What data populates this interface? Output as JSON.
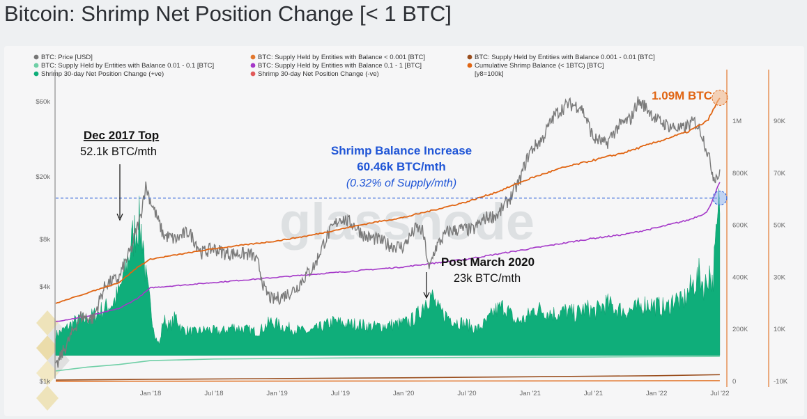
{
  "title": "Bitcoin: Shrimp Net Position Change [< 1 BTC]",
  "watermark": "glassnode",
  "chart_data": {
    "type": "area",
    "title": "Bitcoin: Shrimp Net Position Change [< 1 BTC]",
    "legend": [
      {
        "label": "BTC: Price [USD]",
        "color": "#777777"
      },
      {
        "label": "BTC: Supply Held by Entities with Balance < 0.001 [BTC]",
        "color": "#e2782f"
      },
      {
        "label": "BTC: Supply Held by Entities with Balance 0.001 - 0.01 [BTC]",
        "color": "#9a4e1e"
      },
      {
        "label": "BTC: Supply Held by Entities with Balance 0.01 - 0.1 [BTC]",
        "color": "#6fcfa6"
      },
      {
        "label": "BTC: Supply Held by Entities with Balance 0.1 - 1 [BTC]",
        "color": "#a437c8"
      },
      {
        "label": "Cumulative Shrimp Balance (< 1BTC) [BTC]",
        "color": "#e06513"
      },
      {
        "label": "Shrimp 30-day Net Position Change (+ve)",
        "color": "#0fae7a"
      },
      {
        "label": "Shrimp 30-day Net Position Change (-ve)",
        "color": "#e05a5a"
      },
      {
        "label": "[y8=100k]",
        "color": ""
      }
    ],
    "x_ticks": [
      "Jan '18",
      "Jul '18",
      "Jan '19",
      "Jul '19",
      "Jan '20",
      "Jul '20",
      "Jan '21",
      "Jul '21",
      "Jan '22",
      "Jul '22"
    ],
    "x_range": [
      2017.25,
      2022.55
    ],
    "price_axis": {
      "ticks": [
        "$1k",
        "$4k",
        "$8k",
        "$20k",
        "$60k"
      ],
      "values": [
        1000,
        4000,
        8000,
        20000,
        60000
      ],
      "scale": "log"
    },
    "balance_axis": {
      "ticks": [
        "0",
        "200K",
        "400K",
        "600K",
        "800K",
        "1M"
      ],
      "values": [
        0,
        200000,
        400000,
        600000,
        800000,
        1000000
      ],
      "range": [
        0,
        1150000
      ]
    },
    "change_axis": {
      "ticks": [
        "-10K",
        "10K",
        "30K",
        "50K",
        "70K",
        "90K"
      ],
      "values": [
        -10000,
        10000,
        30000,
        50000,
        70000,
        90000
      ],
      "range": [
        -10000,
        105000
      ]
    },
    "series": [
      {
        "name": "BTC: Price [USD]",
        "axis": "price",
        "x": [
          2017.25,
          2017.35,
          2017.45,
          2017.55,
          2017.65,
          2017.75,
          2017.85,
          2017.92,
          2017.96,
          2018.0,
          2018.05,
          2018.1,
          2018.2,
          2018.3,
          2018.4,
          2018.5,
          2018.6,
          2018.7,
          2018.8,
          2018.85,
          2018.9,
          2018.96,
          2019.05,
          2019.15,
          2019.3,
          2019.4,
          2019.5,
          2019.6,
          2019.7,
          2019.8,
          2019.9,
          2020.0,
          2020.1,
          2020.15,
          2020.2,
          2020.25,
          2020.35,
          2020.45,
          2020.55,
          2020.65,
          2020.75,
          2020.85,
          2020.92,
          2021.0,
          2021.1,
          2021.2,
          2021.3,
          2021.4,
          2021.5,
          2021.55,
          2021.6,
          2021.7,
          2021.8,
          2021.85,
          2021.9,
          2022.0,
          2022.1,
          2022.2,
          2022.3,
          2022.35,
          2022.4,
          2022.45,
          2022.5
        ],
        "values": [
          1200,
          1800,
          2600,
          2500,
          4200,
          4500,
          7000,
          11000,
          17500,
          14000,
          11000,
          8500,
          8000,
          9000,
          6600,
          7000,
          6500,
          6500,
          6400,
          5600,
          3800,
          3300,
          3500,
          3900,
          5500,
          8500,
          11000,
          10000,
          8300,
          8000,
          7300,
          7200,
          9500,
          9000,
          5000,
          7000,
          9000,
          9300,
          9200,
          11000,
          11500,
          15000,
          19000,
          29000,
          35000,
          50000,
          58000,
          56000,
          35000,
          34000,
          32000,
          42000,
          47000,
          60000,
          57000,
          46000,
          42000,
          40000,
          45000,
          39000,
          29000,
          20000,
          20500
        ]
      },
      {
        "name": "Cumulative Shrimp Balance (< 1BTC) [BTC]",
        "axis": "balance",
        "x": [
          2017.25,
          2017.5,
          2017.75,
          2017.9,
          2018.0,
          2018.25,
          2018.5,
          2018.75,
          2019.0,
          2019.25,
          2019.5,
          2019.75,
          2020.0,
          2020.25,
          2020.5,
          2020.75,
          2021.0,
          2021.25,
          2021.5,
          2021.75,
          2022.0,
          2022.25,
          2022.4,
          2022.5
        ],
        "values": [
          300000,
          340000,
          380000,
          440000,
          470000,
          490000,
          510000,
          525000,
          540000,
          560000,
          585000,
          610000,
          630000,
          660000,
          690000,
          730000,
          780000,
          820000,
          850000,
          880000,
          920000,
          960000,
          1000000,
          1090000
        ]
      },
      {
        "name": "BTC: Supply Held by Entities with Balance 0.1 - 1 [BTC]",
        "axis": "balance",
        "x": [
          2017.25,
          2017.5,
          2017.75,
          2017.9,
          2018.0,
          2018.25,
          2018.5,
          2018.75,
          2019.0,
          2019.25,
          2019.5,
          2019.75,
          2020.0,
          2020.25,
          2020.5,
          2020.75,
          2021.0,
          2021.25,
          2021.5,
          2021.75,
          2022.0,
          2022.25,
          2022.4,
          2022.5
        ],
        "values": [
          230000,
          250000,
          280000,
          320000,
          360000,
          370000,
          380000,
          390000,
          400000,
          410000,
          420000,
          430000,
          440000,
          455000,
          470000,
          490000,
          510000,
          530000,
          550000,
          565000,
          590000,
          620000,
          650000,
          765000
        ]
      },
      {
        "name": "BTC: Supply Held by Entities with Balance 0.01 - 0.1 [BTC]",
        "axis": "balance",
        "x": [
          2017.25,
          2017.5,
          2017.75,
          2018.0,
          2018.5,
          2019.0,
          2019.5,
          2020.0,
          2020.5,
          2021.0,
          2021.5,
          2022.0,
          2022.5
        ],
        "values": [
          40000,
          55000,
          65000,
          80000,
          86000,
          88000,
          90000,
          91000,
          92000,
          93000,
          94000,
          95000,
          96000
        ]
      },
      {
        "name": "BTC: Supply Held by Entities with Balance 0.001 - 0.01 [BTC]",
        "axis": "balance",
        "x": [
          2017.25,
          2018.0,
          2019.0,
          2020.0,
          2021.0,
          2022.0,
          2022.5
        ],
        "values": [
          5000,
          8000,
          11000,
          14000,
          18000,
          22000,
          26000
        ]
      },
      {
        "name": "BTC: Supply Held by Entities with Balance < 0.001 [BTC]",
        "axis": "balance",
        "x": [
          2017.25,
          2018.0,
          2019.0,
          2020.0,
          2021.0,
          2022.0,
          2022.5
        ],
        "values": [
          500,
          800,
          1200,
          1500,
          2000,
          2500,
          3000
        ]
      },
      {
        "name": "Shrimp 30-day Net Position Change (+ve)",
        "axis": "change",
        "style": "area",
        "x": [
          2017.25,
          2017.32,
          2017.4,
          2017.5,
          2017.6,
          2017.7,
          2017.75,
          2017.8,
          2017.86,
          2017.9,
          2017.94,
          2017.96,
          2018.0,
          2018.04,
          2018.07,
          2018.1,
          2018.15,
          2018.2,
          2018.25,
          2018.35,
          2018.45,
          2018.55,
          2018.65,
          2018.75,
          2018.85,
          2018.95,
          2019.05,
          2019.15,
          2019.25,
          2019.35,
          2019.45,
          2019.55,
          2019.65,
          2019.75,
          2019.85,
          2019.95,
          2020.05,
          2020.12,
          2020.18,
          2020.22,
          2020.25,
          2020.28,
          2020.35,
          2020.42,
          2020.5,
          2020.58,
          2020.66,
          2020.72,
          2020.8,
          2020.88,
          2020.96,
          2021.04,
          2021.12,
          2021.2,
          2021.28,
          2021.36,
          2021.44,
          2021.52,
          2021.6,
          2021.68,
          2021.76,
          2021.84,
          2021.92,
          2022.0,
          2022.08,
          2022.14,
          2022.2,
          2022.26,
          2022.3,
          2022.34,
          2022.38,
          2022.42,
          2022.44,
          2022.46,
          2022.48,
          2022.5
        ],
        "values": [
          8000,
          10000,
          13000,
          14000,
          17000,
          20000,
          24000,
          33000,
          45000,
          52100,
          45000,
          30000,
          18000,
          7000,
          4000,
          14000,
          11000,
          15000,
          10000,
          9000,
          10000,
          9000,
          11000,
          10000,
          9000,
          13000,
          11000,
          10000,
          9000,
          11000,
          13000,
          12000,
          12000,
          11000,
          11500,
          12000,
          13000,
          16000,
          22000,
          23000,
          20000,
          17000,
          15000,
          13000,
          12000,
          10000,
          13000,
          17000,
          19000,
          13000,
          14000,
          18000,
          17000,
          16000,
          17000,
          16000,
          18000,
          17000,
          20000,
          18000,
          17000,
          18000,
          20000,
          19000,
          18000,
          22000,
          20000,
          25000,
          28000,
          31000,
          26000,
          33000,
          27000,
          38000,
          48000,
          60460
        ]
      },
      {
        "name": "Shrimp 30-day Net Position Change (-ve)",
        "axis": "change",
        "style": "area",
        "x": [
          2017.25,
          2022.5
        ],
        "values": [
          0,
          0
        ]
      }
    ]
  },
  "annotations": {
    "top_title": "Dec 2017 Top",
    "top_value": "52.1k BTC/mth",
    "increase_title": "Shrimp Balance Increase",
    "increase_value": "60.46k BTC/mth",
    "increase_pct": "(0.32% of Supply/mth)",
    "march_title": "Post March 2020",
    "march_value": "23k BTC/mth",
    "current_balance": "1.09M BTC"
  }
}
